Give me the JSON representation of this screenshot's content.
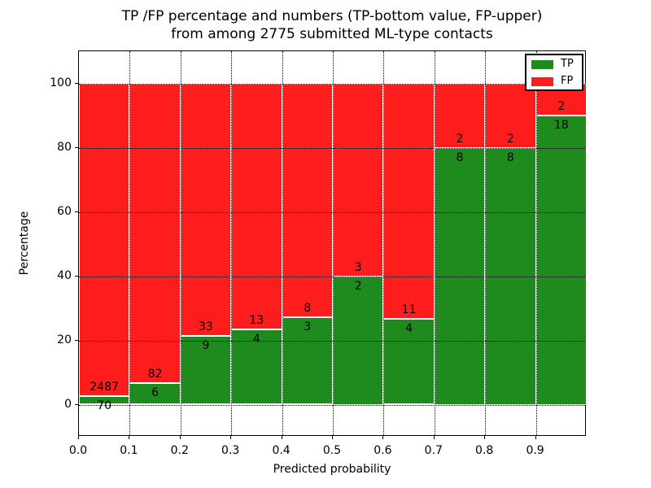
{
  "title": {
    "line1": "TP /FP percentage and numbers (TP-bottom value, FP-upper)",
    "line2": "from among 2775 submitted ML-type contacts"
  },
  "axes": {
    "xlabel": "Predicted probability",
    "ylabel": "Percentage",
    "xtick_labels": [
      "0.0",
      "0.1",
      "0.2",
      "0.3",
      "0.4",
      "0.5",
      "0.6",
      "0.7",
      "0.8",
      "0.9"
    ],
    "ytick_labels": [
      "0",
      "20",
      "40",
      "60",
      "80",
      "100"
    ],
    "ytick_values": [
      0,
      20,
      40,
      60,
      80,
      100
    ]
  },
  "legend": {
    "items": [
      {
        "label": "TP",
        "color": "#1f8b1f"
      },
      {
        "label": "FP",
        "color": "#fe1d1d"
      }
    ]
  },
  "chart_data": {
    "type": "bar",
    "stacked": true,
    "normalized_to_percent": true,
    "title": "TP /FP percentage and numbers (TP-bottom value, FP-upper) from among 2775 submitted ML-type contacts",
    "xlabel": "Predicted probability",
    "ylabel": "Percentage",
    "total_contacts": 2775,
    "bin_edges": [
      0.0,
      0.1,
      0.2,
      0.3,
      0.4,
      0.5,
      0.6,
      0.7,
      0.8,
      0.9,
      1.0
    ],
    "series": [
      {
        "name": "TP",
        "color": "#1f8b1f",
        "counts": [
          70,
          6,
          9,
          4,
          3,
          2,
          4,
          8,
          8,
          18
        ]
      },
      {
        "name": "FP",
        "color": "#fe1d1d",
        "counts": [
          2487,
          82,
          33,
          13,
          8,
          3,
          11,
          2,
          2,
          2
        ]
      }
    ],
    "tp_percent": [
      2.7,
      6.8,
      21.4,
      23.5,
      27.3,
      40.0,
      26.7,
      80.0,
      80.0,
      90.0
    ],
    "ylim": [
      -10,
      110
    ],
    "grid": true,
    "legend_position": "upper right"
  }
}
